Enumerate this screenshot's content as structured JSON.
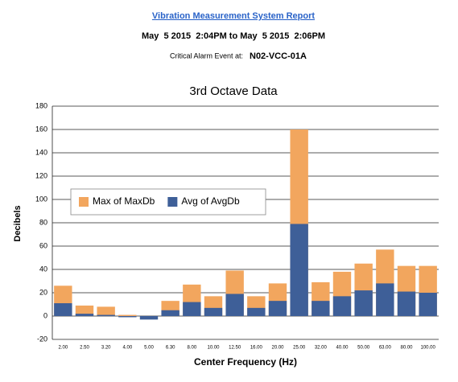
{
  "header": {
    "title": "Vibration Measurement System Report",
    "period": "May  5 2015  2:04PM to May  5 2015  2:06PM",
    "alarm_label": "Critical Alarm Event at:",
    "alarm_id": "N02-VCC-01A"
  },
  "chart_data": {
    "type": "bar",
    "title": "3rd Octave Data",
    "x_label": "Center Frequency (Hz)",
    "y_label": "Decibels",
    "categories": [
      "2.00",
      "2.50",
      "3.20",
      "4.00",
      "5.00",
      "6.30",
      "8.00",
      "10.00",
      "12.50",
      "16.00",
      "20.00",
      "25.00",
      "32.00",
      "40.00",
      "50.00",
      "63.00",
      "80.00",
      "100.00"
    ],
    "series": [
      {
        "name": "Max of MaxDb",
        "color": "#f2a65e",
        "values": [
          26,
          9,
          8,
          1,
          0,
          13,
          27,
          17,
          39,
          17,
          28,
          160,
          29,
          38,
          45,
          57,
          43,
          43
        ]
      },
      {
        "name": "Avg of AvgDb",
        "color": "#3e5f98",
        "values": [
          11,
          2,
          1,
          -1,
          -3,
          5,
          12,
          7,
          19,
          7,
          13,
          79,
          13,
          17,
          22,
          28,
          21,
          20
        ]
      }
    ],
    "ylim": [
      -20,
      180
    ],
    "yticks": [
      -20,
      0,
      20,
      40,
      60,
      80,
      100,
      120,
      140,
      160,
      180
    ],
    "grid": true,
    "legend": "center left"
  }
}
